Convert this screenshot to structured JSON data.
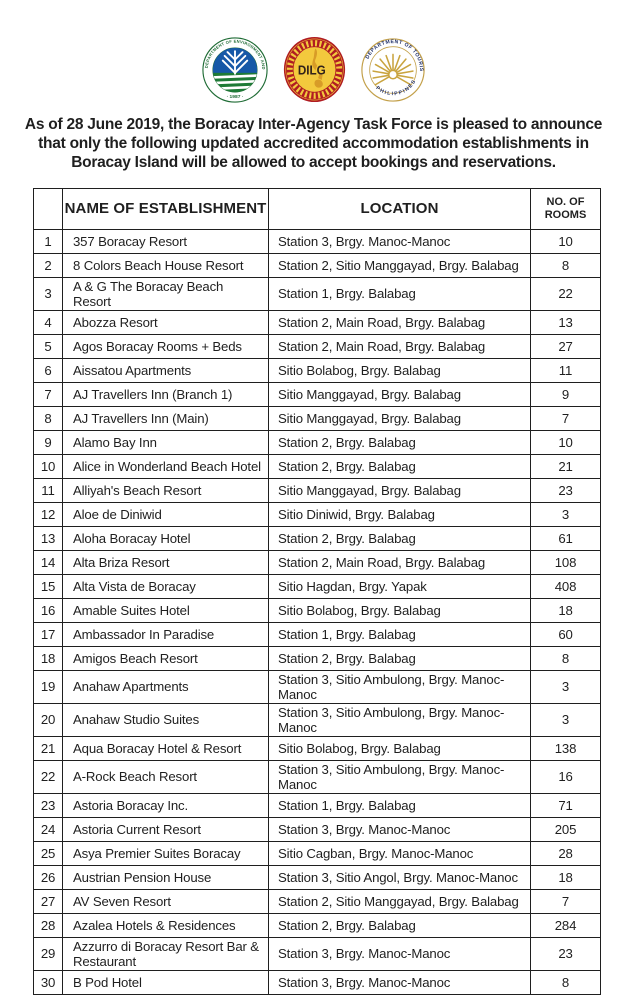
{
  "intro": "As of 28 June 2019, the Boracay Inter-Agency Task Force is pleased to announce that only the following updated accredited accommodation establishments in Boracay Island will be allowed to accept bookings and reservations.",
  "logos": {
    "denr": {
      "ring_text": "DEPARTMENT OF ENVIRONMENT AND NATURAL RESOURCES",
      "year": "· 1987 ·",
      "green": "#1e6b34",
      "blue": "#1658a7"
    },
    "dilg": {
      "acronym": "DILG",
      "red": "#b01c22",
      "gold": "#f3c93d"
    },
    "dot": {
      "top_text": "DEPARTMENT OF TOURISM",
      "bottom_text": "PHILIPPINES",
      "gold": "#c9a43f",
      "navy": "#26356d"
    }
  },
  "table": {
    "headers": {
      "index": "",
      "name": "NAME OF ESTABLISHMENT",
      "location": "LOCATION",
      "rooms": "NO. OF ROOMS"
    },
    "rows": [
      {
        "no": "1",
        "name": "357 Boracay Resort",
        "location": "Station 3, Brgy. Manoc-Manoc",
        "rooms": "10"
      },
      {
        "no": "2",
        "name": "8 Colors Beach House Resort",
        "location": "Station 2, Sitio Manggayad, Brgy. Balabag",
        "rooms": "8"
      },
      {
        "no": "3",
        "name": "A & G The Boracay Beach Resort",
        "location": "Station 1, Brgy. Balabag",
        "rooms": "22"
      },
      {
        "no": "4",
        "name": "Abozza Resort",
        "location": "Station 2, Main Road, Brgy. Balabag",
        "rooms": "13"
      },
      {
        "no": "5",
        "name": "Agos Boracay Rooms + Beds",
        "location": "Station 2, Main Road, Brgy. Balabag",
        "rooms": "27"
      },
      {
        "no": "6",
        "name": "Aissatou Apartments",
        "location": "Sitio Bolabog, Brgy. Balabag",
        "rooms": "11"
      },
      {
        "no": "7",
        "name": "AJ Travellers Inn (Branch 1)",
        "location": "Sitio Manggayad, Brgy. Balabag",
        "rooms": "9"
      },
      {
        "no": "8",
        "name": "AJ Travellers Inn (Main)",
        "location": "Sitio Manggayad, Brgy. Balabag",
        "rooms": "7"
      },
      {
        "no": "9",
        "name": "Alamo Bay Inn",
        "location": "Station 2, Brgy. Balabag",
        "rooms": "10"
      },
      {
        "no": "10",
        "name": "Alice in Wonderland Beach Hotel",
        "location": "Station 2, Brgy. Balabag",
        "rooms": "21"
      },
      {
        "no": "11",
        "name": "Alliyah's Beach Resort",
        "location": "Sitio Manggayad, Brgy. Balabag",
        "rooms": "23"
      },
      {
        "no": "12",
        "name": "Aloe de Diniwid",
        "location": "Sitio Diniwid, Brgy. Balabag",
        "rooms": "3"
      },
      {
        "no": "13",
        "name": "Aloha Boracay Hotel",
        "location": "Station 2, Brgy. Balabag",
        "rooms": "61"
      },
      {
        "no": "14",
        "name": "Alta Briza Resort",
        "location": "Station 2, Main Road, Brgy. Balabag",
        "rooms": "108"
      },
      {
        "no": "15",
        "name": "Alta Vista de Boracay",
        "location": "Sitio Hagdan, Brgy. Yapak",
        "rooms": "408"
      },
      {
        "no": "16",
        "name": "Amable Suites Hotel",
        "location": "Sitio Bolabog, Brgy. Balabag",
        "rooms": "18"
      },
      {
        "no": "17",
        "name": "Ambassador In Paradise",
        "location": "Station 1, Brgy. Balabag",
        "rooms": "60"
      },
      {
        "no": "18",
        "name": "Amigos Beach Resort",
        "location": "Station 2, Brgy. Balabag",
        "rooms": "8"
      },
      {
        "no": "19",
        "name": "Anahaw Apartments",
        "location": "Station 3, Sitio Ambulong, Brgy. Manoc-Manoc",
        "rooms": "3"
      },
      {
        "no": "20",
        "name": "Anahaw Studio Suites",
        "location": "Station 3, Sitio Ambulong, Brgy. Manoc-Manoc",
        "rooms": "3"
      },
      {
        "no": "21",
        "name": "Aqua Boracay Hotel & Resort",
        "location": "Sitio Bolabog, Brgy. Balabag",
        "rooms": "138"
      },
      {
        "no": "22",
        "name": "A-Rock Beach Resort",
        "location": "Station 3, Sitio Ambulong, Brgy. Manoc-Manoc",
        "rooms": "16"
      },
      {
        "no": "23",
        "name": "Astoria Boracay Inc.",
        "location": "Station 1, Brgy. Balabag",
        "rooms": "71"
      },
      {
        "no": "24",
        "name": "Astoria Current Resort",
        "location": "Station 3, Brgy. Manoc-Manoc",
        "rooms": "205"
      },
      {
        "no": "25",
        "name": "Asya Premier Suites Boracay",
        "location": "Sitio Cagban, Brgy. Manoc-Manoc",
        "rooms": "28"
      },
      {
        "no": "26",
        "name": "Austrian Pension House",
        "location": "Station 3, Sitio Angol, Brgy. Manoc-Manoc",
        "rooms": "18"
      },
      {
        "no": "27",
        "name": "AV Seven Resort",
        "location": "Station 2, Sitio Manggayad, Brgy. Balabag",
        "rooms": "7"
      },
      {
        "no": "28",
        "name": "Azalea Hotels & Residences",
        "location": "Station 2, Brgy. Balabag",
        "rooms": "284"
      },
      {
        "no": "29",
        "name": "Azzurro di Boracay Resort Bar & Restaurant",
        "location": "Station 3, Brgy. Manoc-Manoc",
        "rooms": "23"
      },
      {
        "no": "30",
        "name": "B Pod Hotel",
        "location": "Station 3, Brgy. Manoc-Manoc",
        "rooms": "8"
      }
    ]
  }
}
